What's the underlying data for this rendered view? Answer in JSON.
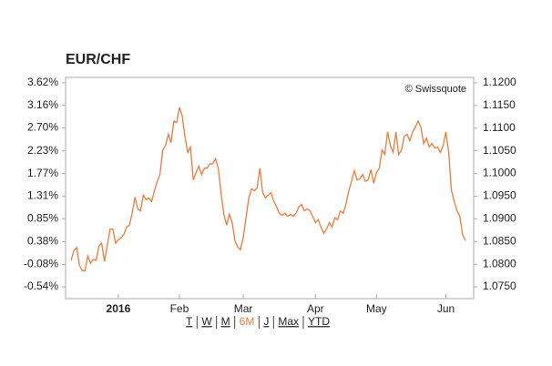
{
  "chart_data": {
    "type": "line",
    "title": "EUR/CHF",
    "source": "© Swissquote",
    "color": "#f07a3c",
    "grid": false,
    "values": [
      0.0,
      0.2,
      0.26,
      -0.1,
      -0.21,
      -0.21,
      0.09,
      -0.06,
      0.02,
      0.0,
      0.29,
      0.35,
      -0.02,
      0.29,
      0.64,
      0.64,
      0.35,
      0.42,
      0.46,
      0.53,
      0.68,
      0.72,
      0.96,
      1.29,
      1.05,
      1.01,
      1.33,
      1.24,
      1.27,
      1.2,
      1.42,
      1.61,
      1.75,
      2.25,
      2.34,
      2.57,
      2.4,
      2.84,
      2.81,
      3.12,
      2.95,
      2.53,
      2.2,
      2.31,
      1.64,
      1.79,
      1.92,
      1.75,
      1.88,
      1.88,
      1.97,
      1.97,
      2.07,
      1.88,
      1.38,
      0.94,
      0.72,
      0.94,
      0.77,
      0.4,
      0.27,
      0.22,
      0.46,
      0.87,
      1.27,
      1.46,
      1.42,
      1.48,
      1.88,
      1.38,
      1.27,
      1.33,
      1.38,
      1.2,
      1.09,
      0.96,
      0.92,
      0.96,
      0.9,
      0.94,
      0.9,
      0.96,
      1.09,
      1.14,
      1.01,
      1.05,
      1.01,
      0.9,
      0.77,
      0.83,
      0.68,
      0.55,
      0.64,
      0.77,
      0.68,
      0.87,
      0.83,
      1.01,
      0.96,
      1.14,
      1.42,
      1.61,
      1.83,
      1.64,
      1.66,
      1.75,
      1.61,
      1.64,
      1.85,
      1.57,
      1.79,
      1.88,
      2.25,
      2.16,
      2.62,
      2.34,
      2.2,
      2.62,
      2.16,
      2.25,
      2.53,
      2.57,
      2.44,
      2.62,
      2.71,
      2.84,
      2.71,
      2.38,
      2.49,
      2.31,
      2.38,
      2.29,
      2.31,
      2.2,
      2.34,
      2.62,
      2.2,
      1.42,
      1.2,
      1.01,
      0.9,
      0.53,
      0.4
    ],
    "xlim": [
      -2,
      145
    ],
    "xticks": [
      {
        "value": 17,
        "label": "2016"
      },
      {
        "value": 39,
        "label": "Feb"
      },
      {
        "value": 62,
        "label": "Mar"
      },
      {
        "value": 88,
        "label": "Apr"
      },
      {
        "value": 110,
        "label": "May"
      },
      {
        "value": 135,
        "label": "Jun"
      }
    ],
    "ylim": [
      -0.78,
      3.73
    ],
    "yticks": [
      {
        "value": 3.62,
        "label": "3.62%"
      },
      {
        "value": 3.16,
        "label": "3.16%"
      },
      {
        "value": 2.7,
        "label": "2.70%"
      },
      {
        "value": 2.23,
        "label": "2.23%"
      },
      {
        "value": 1.77,
        "label": "1.77%"
      },
      {
        "value": 1.31,
        "label": "1.31%"
      },
      {
        "value": 0.85,
        "label": "0.85%"
      },
      {
        "value": 0.38,
        "label": "0.38%"
      },
      {
        "value": -0.08,
        "label": "-0.08%"
      },
      {
        "value": -0.54,
        "label": "-0.54%"
      }
    ],
    "y2lim": [
      1.0724,
      1.1212
    ],
    "y2ticks": [
      {
        "value": 1.12,
        "label": "1.1200"
      },
      {
        "value": 1.115,
        "label": "1.1150"
      },
      {
        "value": 1.11,
        "label": "1.1100"
      },
      {
        "value": 1.105,
        "label": "1.1050"
      },
      {
        "value": 1.1,
        "label": "1.1000"
      },
      {
        "value": 1.095,
        "label": "1.0950"
      },
      {
        "value": 1.09,
        "label": "1.0900"
      },
      {
        "value": 1.085,
        "label": "1.0850"
      },
      {
        "value": 1.08,
        "label": "1.0800"
      },
      {
        "value": 1.075,
        "label": "1.0750"
      }
    ],
    "range_buttons": [
      {
        "label": "T",
        "active": false
      },
      {
        "label": "W",
        "active": false
      },
      {
        "label": "M",
        "active": false
      },
      {
        "label": "6M",
        "active": true
      },
      {
        "label": "J",
        "active": false
      },
      {
        "label": "Max",
        "active": false
      },
      {
        "label": "YTD",
        "active": false
      }
    ]
  }
}
